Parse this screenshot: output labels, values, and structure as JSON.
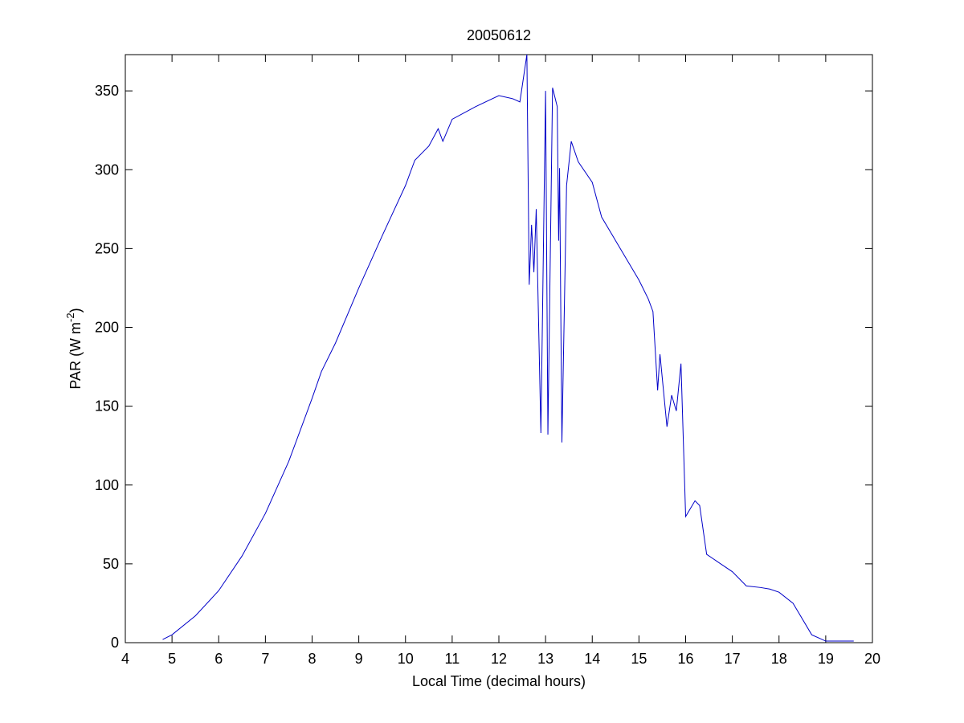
{
  "chart_data": {
    "type": "line",
    "title": "20050612",
    "xlabel": "Local Time (decimal hours)",
    "ylabel_parts": [
      "PAR (W m",
      "-2",
      ")"
    ],
    "color": "#0000c8",
    "xlim": [
      4,
      20
    ],
    "ylim": [
      0,
      373
    ],
    "xticks": [
      4,
      5,
      6,
      7,
      8,
      9,
      10,
      11,
      12,
      13,
      14,
      15,
      16,
      17,
      18,
      19,
      20
    ],
    "yticks": [
      0,
      50,
      100,
      150,
      200,
      250,
      300,
      350
    ],
    "x": [
      4.8,
      5.0,
      5.5,
      6.0,
      6.5,
      7.0,
      7.5,
      8.0,
      8.2,
      8.5,
      9.0,
      9.5,
      10.0,
      10.2,
      10.5,
      10.7,
      10.8,
      11.0,
      11.5,
      12.0,
      12.3,
      12.45,
      12.6,
      12.65,
      12.7,
      12.75,
      12.8,
      12.9,
      13.0,
      13.05,
      13.15,
      13.25,
      13.28,
      13.3,
      13.35,
      13.45,
      13.55,
      13.7,
      14.0,
      14.2,
      14.5,
      14.8,
      15.0,
      15.2,
      15.3,
      15.4,
      15.45,
      15.6,
      15.7,
      15.8,
      15.9,
      16.0,
      16.2,
      16.3,
      16.45,
      16.7,
      17.0,
      17.3,
      17.6,
      17.8,
      18.0,
      18.3,
      18.7,
      19.0,
      19.3,
      19.6
    ],
    "values": [
      2,
      5,
      17,
      33,
      55,
      82,
      115,
      155,
      172,
      190,
      225,
      258,
      290,
      306,
      315,
      326,
      318,
      332,
      340,
      347,
      345,
      343,
      373,
      227,
      265,
      235,
      275,
      133,
      350,
      132,
      352,
      340,
      255,
      301,
      127,
      290,
      318,
      305,
      292,
      270,
      255,
      240,
      230,
      218,
      210,
      160,
      183,
      137,
      157,
      147,
      177,
      80,
      90,
      87,
      56,
      51,
      45,
      36,
      35,
      34,
      32,
      25,
      5,
      1,
      1,
      1
    ]
  }
}
